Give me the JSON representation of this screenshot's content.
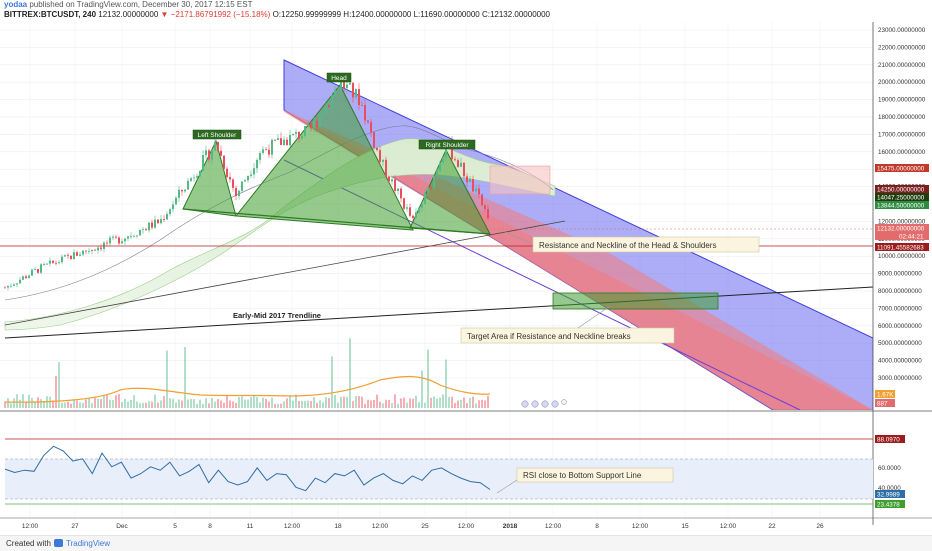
{
  "header": {
    "user": "yodaa",
    "published": "published on TradingView.com, December 30, 2017 12:15 EST",
    "symbol": "BITTREX:BTCUSDT, 240",
    "last": "12132.00000000",
    "change": "▼ −2171.86791992 (−15.18%)",
    "ohlc": "O:12250.99999999  H:12400.00000000  L:11690.00000000  C:12132.00000000"
  },
  "footer": {
    "created_with": "Created with",
    "brand": "TradingView"
  },
  "colors": {
    "up": "#53b987",
    "down": "#eb4d5c",
    "blue_channel": "#5c5cf0",
    "red_channel": "#f47a7a",
    "pattern": "#3f9e2f",
    "rsi": "#2e6ea6",
    "ema": "#f0a030"
  },
  "chart_data": [
    {
      "type": "line",
      "panel": "price",
      "ylim": [
        0,
        23000
      ],
      "y_ticks": [
        "23000.00000000",
        "22000.00000000",
        "21000.00000000",
        "20000.00000000",
        "19000.00000000",
        "18000.00000000",
        "17000.00000000",
        "16000.00000000",
        "15000.00000000",
        "14000.00000000",
        "13000.00000000",
        "12000.00000000",
        "11000.00000000",
        "10000.00000000",
        "9000.00000000",
        "8000.00000000",
        "7000.00000000",
        "6000.00000000",
        "5000.00000000",
        "4000.00000000",
        "3000.00000000"
      ],
      "x_ticks": [
        "12:00",
        "27",
        "Dec",
        "5",
        "8",
        "11",
        "12:00",
        "18",
        "12:00",
        "25",
        "12:00",
        "2018",
        "12:00",
        "8",
        "12:00",
        "15",
        "12:00",
        "22",
        "26"
      ],
      "series": [
        {
          "name": "BTCUSDT",
          "x": [
            "2017-11-23",
            "2017-11-26",
            "2017-11-29",
            "2017-12-02",
            "2017-12-05",
            "2017-12-07",
            "2017-12-08",
            "2017-12-10",
            "2017-12-12",
            "2017-12-14",
            "2017-12-17",
            "2017-12-18",
            "2017-12-20",
            "2017-12-22",
            "2017-12-24",
            "2017-12-26",
            "2017-12-28",
            "2017-12-30"
          ],
          "values": [
            8200,
            9300,
            10200,
            11000,
            12000,
            16500,
            13500,
            16000,
            16800,
            17200,
            20000,
            19000,
            15500,
            12000,
            14000,
            16500,
            14200,
            12132
          ]
        }
      ],
      "price_labels": [
        "15475.00000000",
        "14250.00000000",
        "14047.25000000",
        "13844.50000000",
        "12132.00000000",
        "02:44:21",
        "11091.45582683"
      ],
      "annotations": [
        "Left Shoulder",
        "Head",
        "Right Shoulder",
        "Resistance and Neckline of the Head & Shoulders",
        "Early-Mid 2017 Trendline",
        "Target Area if Resistance and Neckline breaks"
      ]
    },
    {
      "type": "bar",
      "panel": "volume",
      "volume_labels": [
        "1.67K",
        "887"
      ]
    },
    {
      "type": "line",
      "panel": "rsi",
      "ylim": [
        20,
        100
      ],
      "y_ticks": [
        "60.0000",
        "40.0000"
      ],
      "levels": [
        "88.0970",
        "32.9989",
        "23.4378"
      ],
      "series": [
        {
          "name": "RSI",
          "values": [
            56,
            53,
            55,
            54,
            68,
            76,
            72,
            63,
            65,
            52,
            70,
            58,
            62,
            48,
            52,
            58,
            55,
            62,
            50,
            54,
            60,
            44,
            55,
            45,
            42,
            45,
            57,
            46,
            52,
            51,
            40,
            37,
            48,
            44,
            52,
            50,
            55,
            42,
            48,
            52,
            46,
            43,
            50,
            46,
            55,
            57,
            52,
            48,
            45,
            44,
            38
          ]
        }
      ],
      "annotation": "RSI close to Bottom Support Line"
    }
  ]
}
